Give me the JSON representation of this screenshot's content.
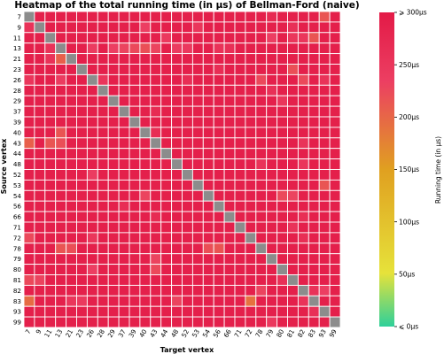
{
  "chart_data": {
    "type": "heatmap",
    "title": "Heatmap of the total running time (in μs) of Bellman-Ford (naive)",
    "xlabel": "Target vertex",
    "ylabel": "Source vertex",
    "vertices": [
      "7",
      "9",
      "11",
      "13",
      "21",
      "23",
      "26",
      "28",
      "29",
      "37",
      "39",
      "40",
      "43",
      "44",
      "48",
      "52",
      "53",
      "54",
      "56",
      "66",
      "71",
      "72",
      "78",
      "79",
      "80",
      "81",
      "82",
      "83",
      "93",
      "99"
    ],
    "diagonal": "no data (grey)",
    "default_value": 290,
    "cells": [
      {
        "row": "7",
        "col": "93",
        "value": 215
      },
      {
        "row": "7",
        "col": "79",
        "value": 270
      },
      {
        "row": "9",
        "col": "7",
        "value": 255
      },
      {
        "row": "9",
        "col": "40",
        "value": 235
      },
      {
        "row": "9",
        "col": "53",
        "value": 250
      },
      {
        "row": "9",
        "col": "81",
        "value": 260
      },
      {
        "row": "11",
        "col": "79",
        "value": 235
      },
      {
        "row": "11",
        "col": "81",
        "value": 250
      },
      {
        "row": "11",
        "col": "82",
        "value": 250
      },
      {
        "row": "11",
        "col": "83",
        "value": 215
      },
      {
        "row": "11",
        "col": "44",
        "value": 245
      },
      {
        "row": "13",
        "col": "11",
        "value": 255
      },
      {
        "row": "13",
        "col": "26",
        "value": 240
      },
      {
        "row": "13",
        "col": "29",
        "value": 235
      },
      {
        "row": "13",
        "col": "37",
        "value": 230
      },
      {
        "row": "13",
        "col": "39",
        "value": 225
      },
      {
        "row": "13",
        "col": "40",
        "value": 220
      },
      {
        "row": "13",
        "col": "43",
        "value": 230
      },
      {
        "row": "13",
        "col": "48",
        "value": 240
      },
      {
        "row": "13",
        "col": "52",
        "value": 245
      },
      {
        "row": "13",
        "col": "56",
        "value": 255
      },
      {
        "row": "13",
        "col": "66",
        "value": 260
      },
      {
        "row": "21",
        "col": "11",
        "value": 255
      },
      {
        "row": "21",
        "col": "13",
        "value": 205
      },
      {
        "row": "23",
        "col": "81",
        "value": 220
      },
      {
        "row": "23",
        "col": "56",
        "value": 265
      },
      {
        "row": "26",
        "col": "7",
        "value": 250
      },
      {
        "row": "26",
        "col": "13",
        "value": 240
      },
      {
        "row": "26",
        "col": "28",
        "value": 250
      },
      {
        "row": "26",
        "col": "78",
        "value": 225
      },
      {
        "row": "26",
        "col": "82",
        "value": 225
      },
      {
        "row": "26",
        "col": "93",
        "value": 255
      },
      {
        "row": "26",
        "col": "52",
        "value": 265
      },
      {
        "row": "28",
        "col": "79",
        "value": 260
      },
      {
        "row": "29",
        "col": "80",
        "value": 250
      },
      {
        "row": "37",
        "col": "43",
        "value": 270
      },
      {
        "row": "40",
        "col": "13",
        "value": 215
      },
      {
        "row": "40",
        "col": "43",
        "value": 265
      },
      {
        "row": "43",
        "col": "7",
        "value": 205
      },
      {
        "row": "43",
        "col": "11",
        "value": 215
      },
      {
        "row": "43",
        "col": "13",
        "value": 220
      },
      {
        "row": "43",
        "col": "82",
        "value": 255
      },
      {
        "row": "48",
        "col": "78",
        "value": 255
      },
      {
        "row": "48",
        "col": "82",
        "value": 250
      },
      {
        "row": "52",
        "col": "26",
        "value": 240
      },
      {
        "row": "53",
        "col": "93",
        "value": 215
      },
      {
        "row": "54",
        "col": "40",
        "value": 230
      },
      {
        "row": "54",
        "col": "80",
        "value": 225
      },
      {
        "row": "54",
        "col": "81",
        "value": 230
      },
      {
        "row": "56",
        "col": "37",
        "value": 265
      },
      {
        "row": "66",
        "col": "82",
        "value": 265
      },
      {
        "row": "66",
        "col": "43",
        "value": 270
      },
      {
        "row": "71",
        "col": "81",
        "value": 255
      },
      {
        "row": "72",
        "col": "7",
        "value": 225
      },
      {
        "row": "72",
        "col": "26",
        "value": 250
      },
      {
        "row": "72",
        "col": "82",
        "value": 265
      },
      {
        "row": "78",
        "col": "13",
        "value": 215
      },
      {
        "row": "78",
        "col": "21",
        "value": 220
      },
      {
        "row": "78",
        "col": "54",
        "value": 220
      },
      {
        "row": "78",
        "col": "56",
        "value": 215
      },
      {
        "row": "79",
        "col": "43",
        "value": 230
      },
      {
        "row": "80",
        "col": "26",
        "value": 235
      },
      {
        "row": "80",
        "col": "43",
        "value": 225
      },
      {
        "row": "81",
        "col": "7",
        "value": 225
      },
      {
        "row": "81",
        "col": "9",
        "value": 230
      },
      {
        "row": "81",
        "col": "80",
        "value": 260
      },
      {
        "row": "82",
        "col": "78",
        "value": 230
      },
      {
        "row": "82",
        "col": "93",
        "value": 235
      },
      {
        "row": "82",
        "col": "83",
        "value": 255
      },
      {
        "row": "83",
        "col": "7",
        "value": 195
      },
      {
        "row": "83",
        "col": "21",
        "value": 250
      },
      {
        "row": "83",
        "col": "23",
        "value": 245
      },
      {
        "row": "83",
        "col": "48",
        "value": 230
      },
      {
        "row": "83",
        "col": "72",
        "value": 190
      },
      {
        "row": "83",
        "col": "82",
        "value": 255
      },
      {
        "row": "93",
        "col": "83",
        "value": 260
      },
      {
        "row": "99",
        "col": "79",
        "value": 245
      }
    ],
    "colorbar": {
      "label": "Running time (in μs)",
      "ticks": [
        "⩽ 0μs",
        "50μs",
        "100μs",
        "150μs",
        "200μs",
        "250μs",
        "⩾ 300μs"
      ],
      "tick_values": [
        0,
        50,
        100,
        150,
        200,
        250,
        300
      ],
      "range": [
        0,
        300
      ],
      "colormap": [
        "#2ed09a",
        "#e8e033",
        "#e0a020",
        "#ec3f62",
        "#e31a47"
      ]
    },
    "grid": true,
    "legend": "colorbar-right"
  }
}
